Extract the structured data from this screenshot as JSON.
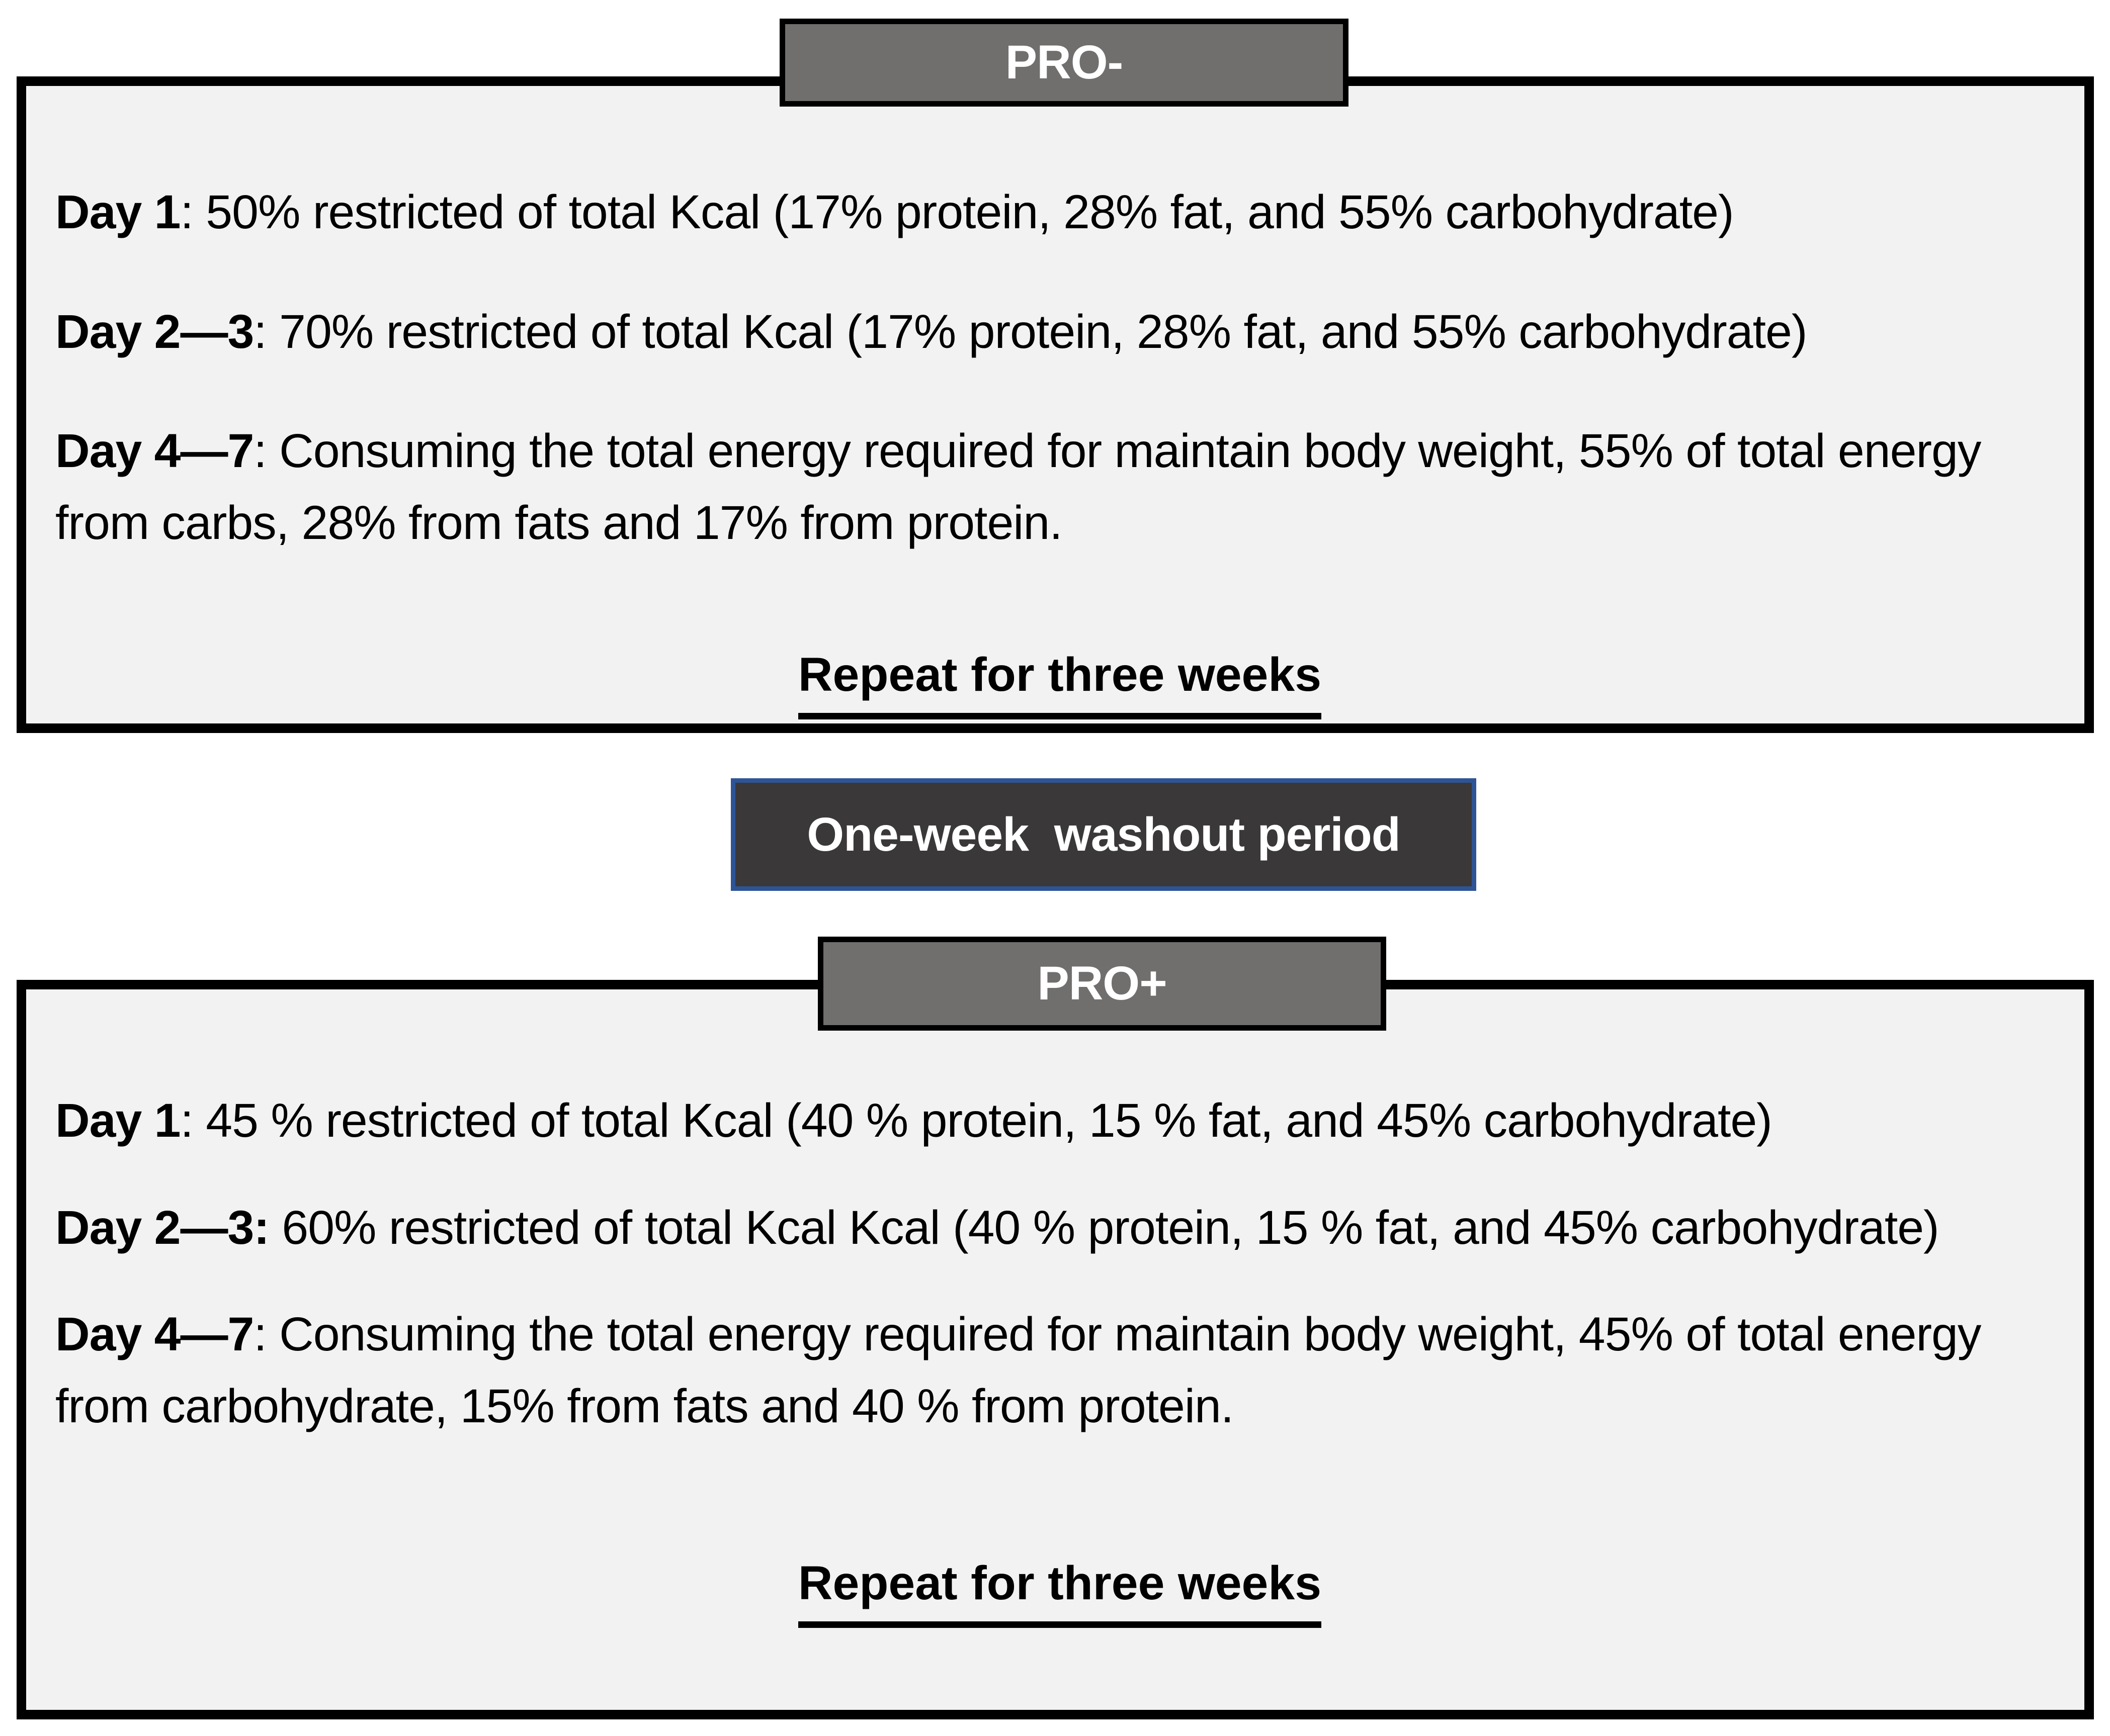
{
  "colors": {
    "page_bg": "#ffffff",
    "panel_fill": "#f2f2f2",
    "panel_border": "#000000",
    "header_fill": "#716e6e",
    "header_text": "#ffffff",
    "washout_fill": "#3a3838",
    "washout_border": "#2e5496",
    "washout_text": "#ffffff",
    "text": "#000000"
  },
  "pro_minus": {
    "label": "PRO-",
    "lines": [
      {
        "prefix": "Day 1",
        "text": ": 50% restricted of total Kcal (17% protein, 28% fat, and 55% carbohydrate)"
      },
      {
        "prefix": "Day 2—3",
        "text": ": 70% restricted of total Kcal (17% protein, 28% fat, and 55% carbohydrate)"
      },
      {
        "prefix": "Day 4—7",
        "text": ": Consuming the total energy required for maintain body weight, 55% of total energy from carbs, 28% from fats and 17% from protein."
      }
    ],
    "footer": "Repeat for three weeks"
  },
  "washout": {
    "label": "One-week  washout period"
  },
  "pro_plus": {
    "label": "PRO+",
    "lines": [
      {
        "prefix": "Day 1",
        "text": ": 45 % restricted of total Kcal (40 % protein, 15 % fat, and 45% carbohydrate)"
      },
      {
        "prefix": "Day 2—3:",
        "text": " 60% restricted of total Kcal Kcal (40 % protein, 15 % fat, and 45% carbohydrate)"
      },
      {
        "prefix": "Day 4—7",
        "text": ": Consuming the total energy required for maintain body weight, 45% of total energy from carbohydrate, 15% from fats and 40 % from protein."
      }
    ],
    "footer": "Repeat for three weeks"
  }
}
